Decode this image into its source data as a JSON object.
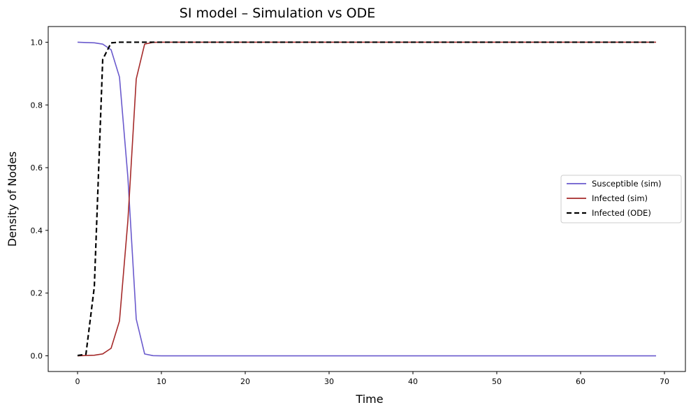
{
  "chart_data": {
    "type": "line",
    "title": "SI model – Simulation vs ODE",
    "xlabel": "Time",
    "ylabel": "Density of Nodes",
    "xlim": [
      -3.5,
      72.5
    ],
    "ylim": [
      -0.05,
      1.05
    ],
    "xticks": [
      0,
      10,
      20,
      30,
      40,
      50,
      60,
      70
    ],
    "yticks": [
      0.0,
      0.2,
      0.4,
      0.6,
      0.8,
      1.0
    ],
    "ytick_labels": [
      "0.0",
      "0.2",
      "0.4",
      "0.6",
      "0.8",
      "1.0"
    ],
    "grid": false,
    "legend_position": "center-right",
    "series": [
      {
        "name": "Susceptible (sim)",
        "color": "#6a5acd",
        "style": "solid",
        "x": [
          0,
          1,
          2,
          3,
          4,
          5,
          6,
          7,
          8,
          9,
          10,
          20,
          30,
          40,
          50,
          60,
          69
        ],
        "y": [
          1.0,
          0.999,
          0.998,
          0.994,
          0.976,
          0.889,
          0.57,
          0.117,
          0.006,
          0.0005,
          0.0,
          0.0,
          0.0,
          0.0,
          0.0,
          0.0,
          0.0
        ]
      },
      {
        "name": "Infected (sim)",
        "color": "#a52a2a",
        "style": "solid",
        "x": [
          0,
          1,
          2,
          3,
          4,
          5,
          6,
          7,
          8,
          9,
          10,
          20,
          30,
          40,
          50,
          60,
          69
        ],
        "y": [
          0.0,
          0.001,
          0.002,
          0.006,
          0.024,
          0.111,
          0.43,
          0.883,
          0.994,
          0.9995,
          1.0,
          1.0,
          1.0,
          1.0,
          1.0,
          1.0,
          1.0
        ]
      },
      {
        "name": "Infected (ODE)",
        "color": "#000000",
        "style": "dashed",
        "x": [
          0,
          1,
          2,
          3,
          4,
          5,
          10,
          20,
          30,
          40,
          50,
          60,
          69
        ],
        "y": [
          0.001,
          0.005,
          0.22,
          0.945,
          0.998,
          1.0,
          1.0,
          1.0,
          1.0,
          1.0,
          1.0,
          1.0,
          1.0
        ]
      }
    ]
  }
}
